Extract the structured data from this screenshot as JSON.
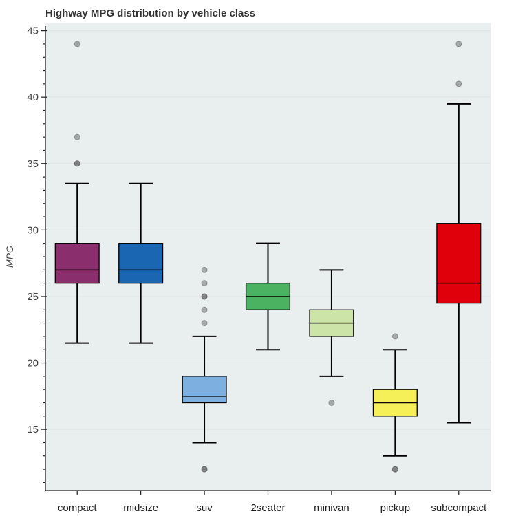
{
  "chart_data": {
    "type": "box",
    "title": "Highway MPG distribution by vehicle class",
    "xlabel": "",
    "ylabel": "MPG",
    "ylim": [
      10.4,
      45.6
    ],
    "yticks": [
      15,
      20,
      25,
      30,
      35,
      40,
      45
    ],
    "grid": true,
    "background": "#e9eeee",
    "categories": [
      "compact",
      "midsize",
      "suv",
      "2seater",
      "minivan",
      "pickup",
      "subcompact"
    ],
    "boxes": [
      {
        "category": "compact",
        "lower": 21.5,
        "q1": 26,
        "median": 27,
        "q3": 29,
        "upper": 33.5,
        "outliers": [
          35,
          35,
          37,
          44
        ],
        "color": "#8a2e6e"
      },
      {
        "category": "midsize",
        "lower": 21.5,
        "q1": 26,
        "median": 27,
        "q3": 29,
        "upper": 33.5,
        "outliers": [],
        "color": "#1a66b2"
      },
      {
        "category": "suv",
        "lower": 14,
        "q1": 17,
        "median": 17.5,
        "q3": 19,
        "upper": 22,
        "outliers": [
          12,
          12,
          23,
          24,
          25,
          25,
          26,
          27
        ],
        "color": "#7db0e0"
      },
      {
        "category": "2seater",
        "lower": 21,
        "q1": 24,
        "median": 25,
        "q3": 26,
        "upper": 29,
        "outliers": [],
        "color": "#4bb262"
      },
      {
        "category": "minivan",
        "lower": 19,
        "q1": 22,
        "median": 23,
        "q3": 24,
        "upper": 27,
        "outliers": [
          17
        ],
        "color": "#cde4a8"
      },
      {
        "category": "pickup",
        "lower": 13,
        "q1": 16,
        "median": 17,
        "q3": 18,
        "upper": 21,
        "outliers": [
          12,
          12,
          22
        ],
        "color": "#f5ef58"
      },
      {
        "category": "subcompact",
        "lower": 15.5,
        "q1": 24.5,
        "median": 26,
        "q3": 30.5,
        "upper": 39.5,
        "outliers": [
          41,
          44
        ],
        "color": "#df000c"
      }
    ]
  }
}
